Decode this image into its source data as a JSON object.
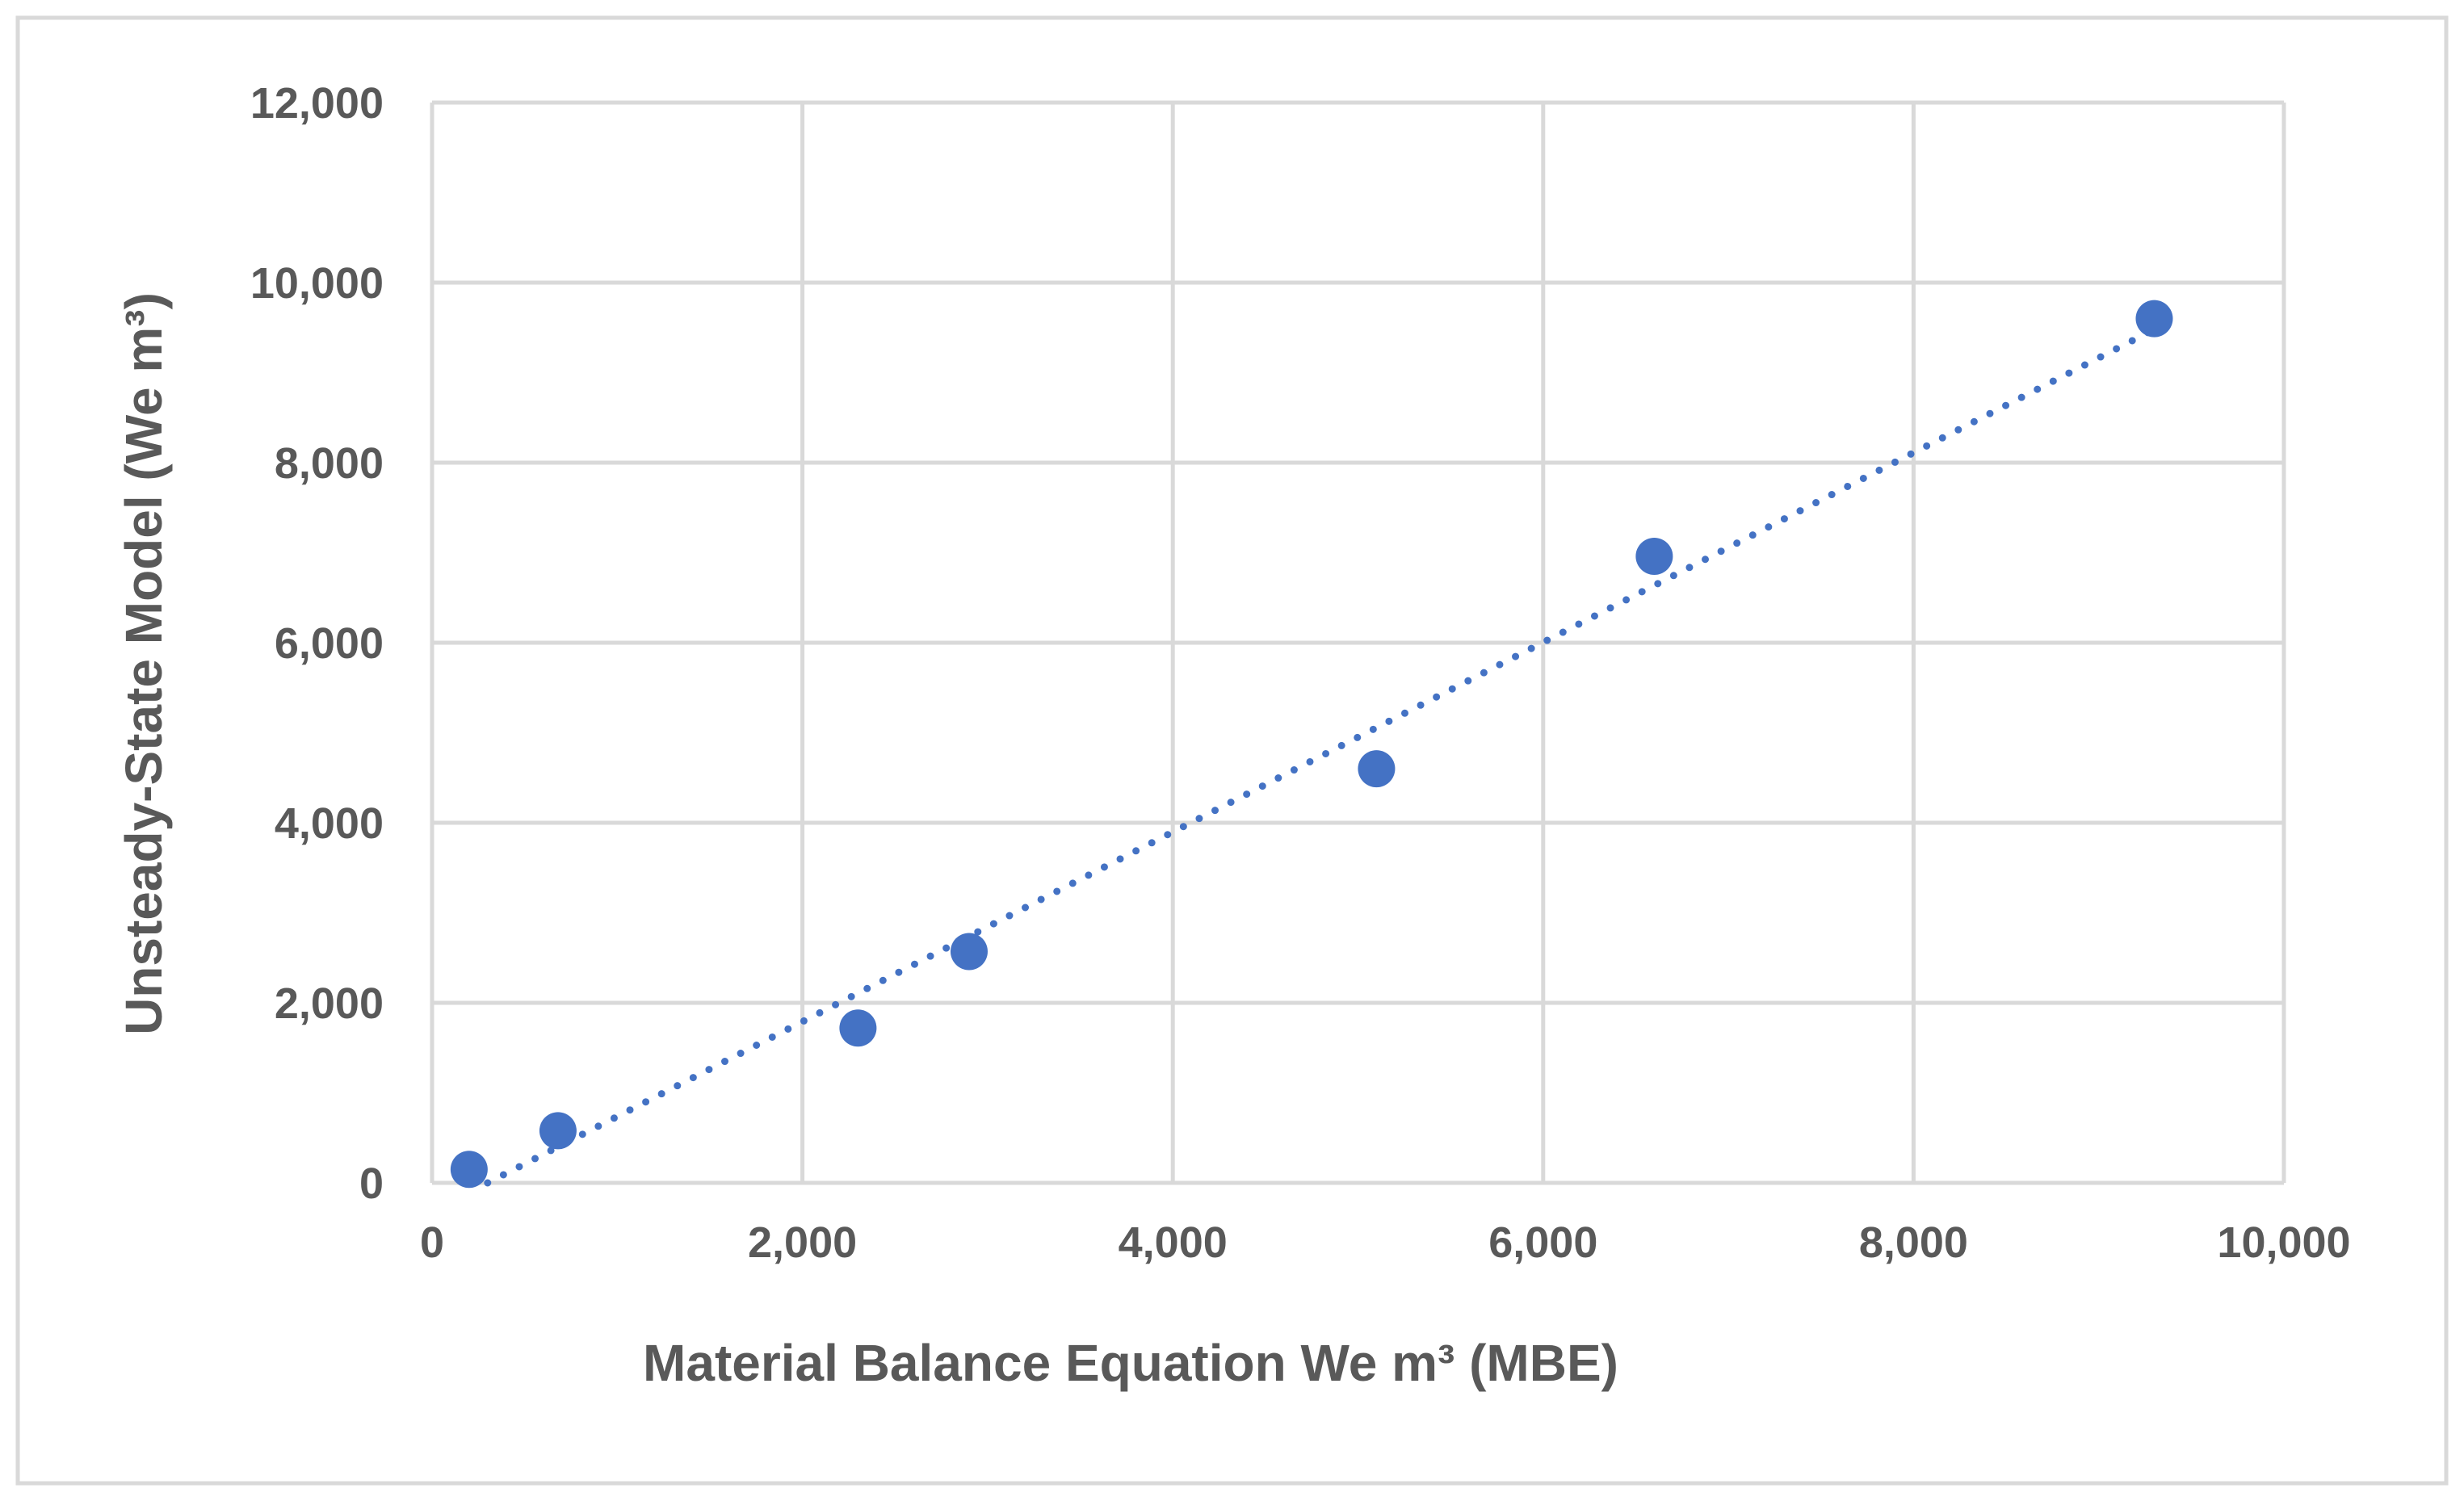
{
  "chart_data": {
    "type": "scatter",
    "title": "",
    "xlabel": "Material Balance Equation We m³ (MBE)",
    "ylabel": "Unsteady-State Model (We m³)",
    "xlim": [
      0,
      10000
    ],
    "ylim": [
      0,
      12000
    ],
    "x_ticks": [
      0,
      2000,
      4000,
      6000,
      8000,
      10000
    ],
    "x_tick_labels": [
      "0",
      "2,000",
      "4,000",
      "6,000",
      "8,000",
      "10,000"
    ],
    "y_ticks": [
      0,
      2000,
      4000,
      6000,
      8000,
      10000,
      12000
    ],
    "y_tick_labels": [
      "0",
      "2,000",
      "4,000",
      "6,000",
      "8,000",
      "10,000",
      "12,000"
    ],
    "grid": true,
    "legend": "none",
    "series": [
      {
        "x": [
          200,
          680,
          2300,
          2900,
          5100,
          6600,
          9300
        ],
        "y": [
          150,
          580,
          1720,
          2570,
          4600,
          6960,
          9600
        ],
        "color": "#4472c4",
        "marker": "circle"
      }
    ],
    "trendline": {
      "type": "linear",
      "style": "dotted",
      "color": "#4472c4",
      "x_range": [
        300,
        9300
      ],
      "y_range": [
        0,
        9480
      ]
    }
  }
}
